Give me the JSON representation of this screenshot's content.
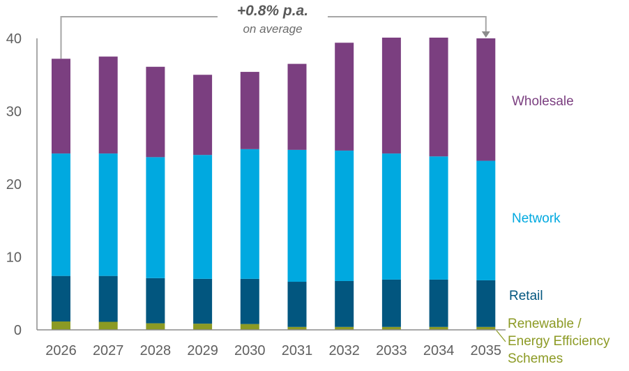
{
  "chart_data": {
    "type": "bar",
    "stacked": true,
    "title": "",
    "xlabel": "",
    "ylabel": "",
    "ylim": [
      0,
      40
    ],
    "yticks": [
      0,
      10,
      20,
      30,
      40
    ],
    "grid": false,
    "categories": [
      "2026",
      "2027",
      "2028",
      "2029",
      "2030",
      "2031",
      "2032",
      "2033",
      "2034",
      "2035"
    ],
    "series": [
      {
        "name": "Renewable / Energy Efficiency Schemes",
        "label_lines": [
          "Renewable /",
          "Energy Efficiency",
          "Schemes"
        ],
        "color": "#8c9a24",
        "values": [
          1.15,
          1.1,
          0.9,
          0.85,
          0.8,
          0.4,
          0.4,
          0.4,
          0.4,
          0.4
        ]
      },
      {
        "name": "Retail",
        "label_lines": [
          "Retail"
        ],
        "color": "#02567f",
        "values": [
          6.25,
          6.3,
          6.2,
          6.15,
          6.2,
          6.2,
          6.3,
          6.5,
          6.5,
          6.4
        ]
      },
      {
        "name": "Network",
        "label_lines": [
          "Network"
        ],
        "color": "#00a9e0",
        "values": [
          16.8,
          16.8,
          16.6,
          17.0,
          17.8,
          18.1,
          17.9,
          17.3,
          16.9,
          16.4
        ]
      },
      {
        "name": "Wholesale",
        "label_lines": [
          "Wholesale"
        ],
        "color": "#7b3f80",
        "values": [
          13.0,
          13.3,
          12.4,
          11.0,
          10.6,
          11.8,
          14.8,
          15.9,
          16.3,
          16.8
        ]
      }
    ],
    "totals": [
      37.2,
      37.5,
      36.1,
      35.0,
      35.4,
      36.5,
      39.4,
      40.1,
      40.1,
      40.0
    ],
    "legend": "right, inline labels",
    "annotation": {
      "main": "+0.8% p.a.",
      "sub": "on average",
      "from": "2026",
      "to": "2035"
    },
    "colors": {
      "axis": "#8c8c8c",
      "tick_text": "#5f5f5f",
      "annotation_line": "#a6a6a6"
    }
  }
}
